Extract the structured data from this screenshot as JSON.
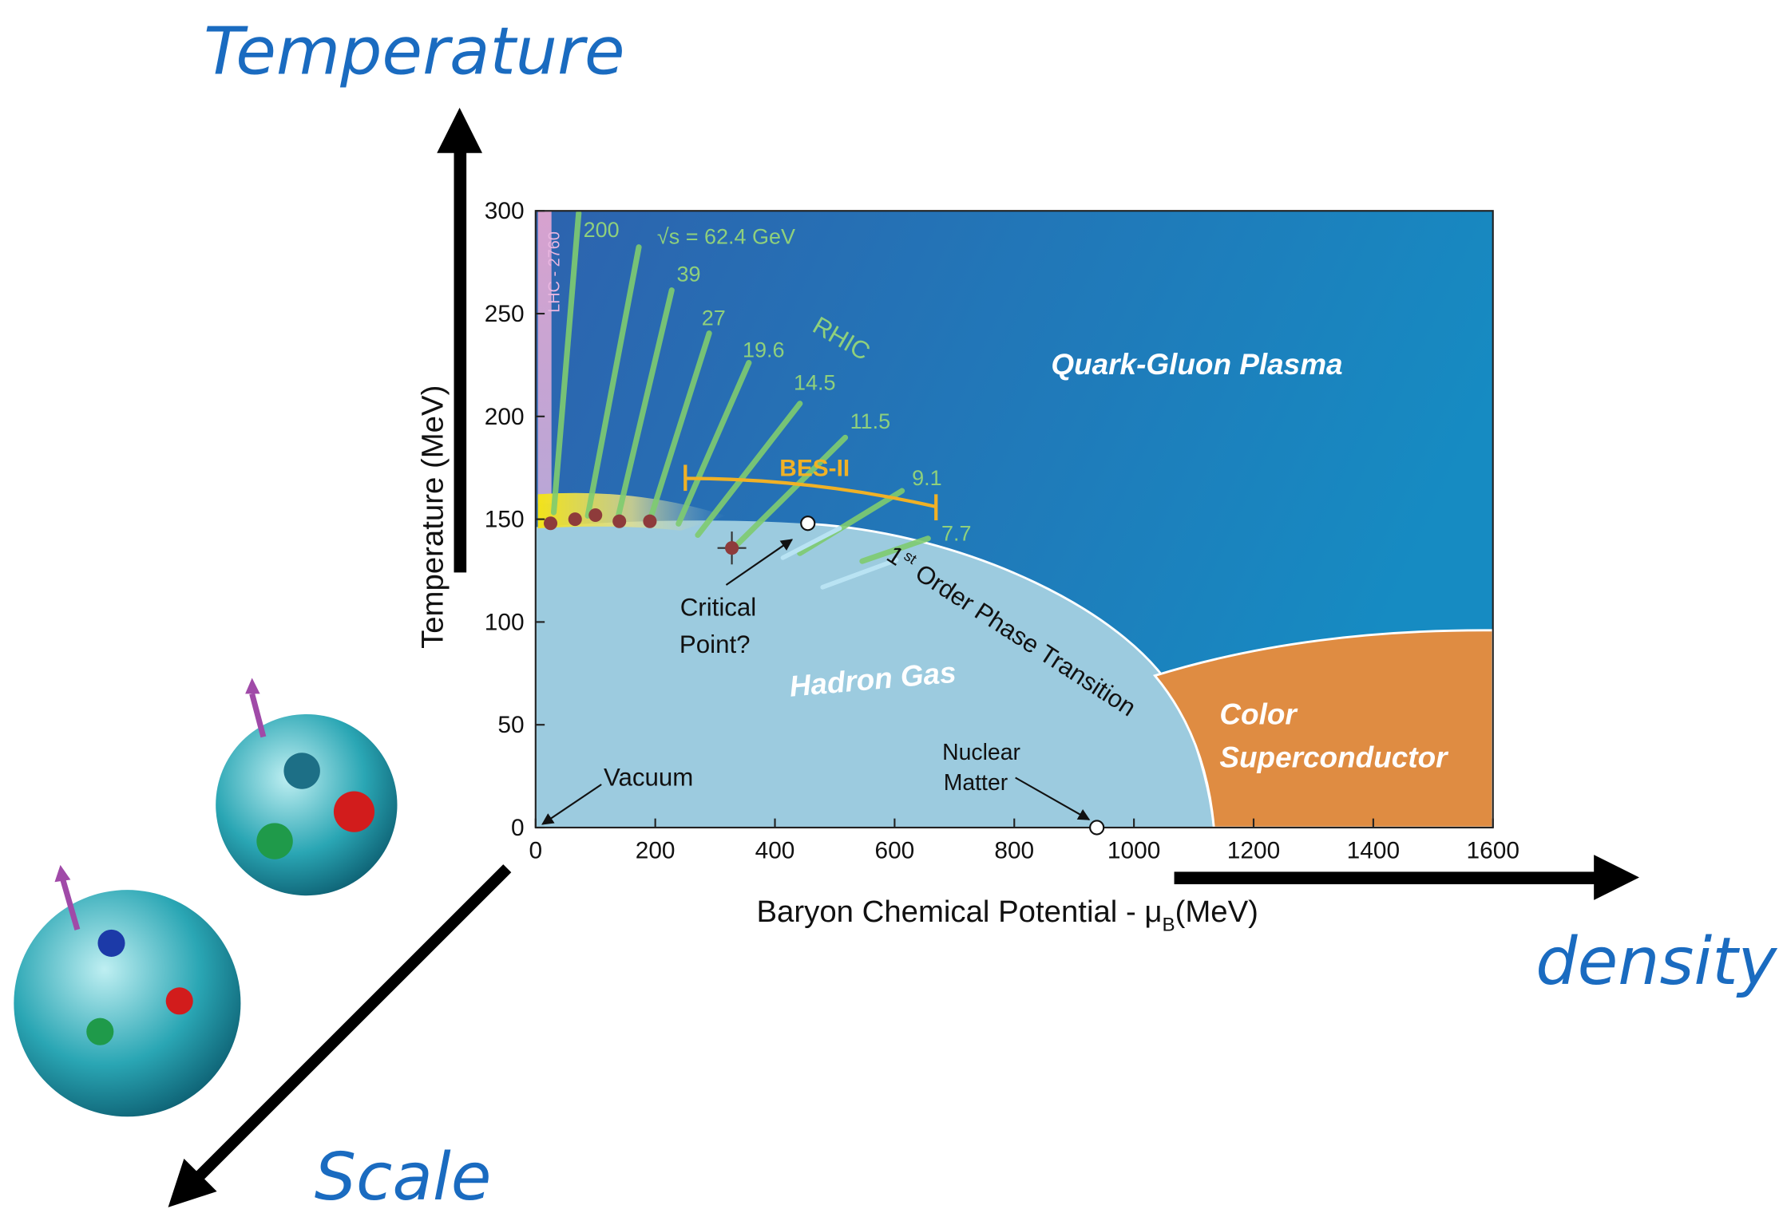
{
  "chart_data": {
    "type": "phase",
    "xlabel": {
      "main": "Baryon Chemical Potential - μ",
      "sub": "B",
      "unit": "(MeV)"
    },
    "ylabel": "Temperature (MeV)",
    "xlim": [
      0,
      1600
    ],
    "ylim": [
      0,
      300
    ],
    "xticks": [
      0,
      200,
      400,
      600,
      800,
      1000,
      1200,
      1400,
      1600
    ],
    "yticks": [
      0,
      50,
      100,
      150,
      200,
      250,
      300
    ],
    "series": [
      {
        "color": "#8e3b3b",
        "x": [
          25,
          66,
          100,
          140,
          191,
          328
        ],
        "values": [
          148,
          150,
          152,
          149,
          149,
          136
        ],
        "errors": [
          null,
          null,
          null,
          null,
          null,
          8
        ],
        "x_errors": [
          null,
          null,
          null,
          null,
          null,
          24
        ]
      },
      {
        "color": "#ffffff",
        "x": [
          455,
          938
        ],
        "values": [
          148,
          0
        ]
      }
    ],
    "regions": {
      "qgp": "Quark-Gluon Plasma",
      "hadron": "Hadron Gas",
      "csc": [
        "Color",
        "Superconductor"
      ]
    },
    "annotations": {
      "critical_point": [
        "Critical",
        "Point?"
      ],
      "vacuum": "Vacuum",
      "nuclear_matter": [
        "Nuclear",
        "Matter"
      ],
      "transition": [
        "1",
        "st",
        "Order Phase Transition"
      ],
      "bes": "BES-II",
      "rhic": "RHIC",
      "lhc": "LHC - 2760",
      "energies": [
        "200",
        "√s = 62.4 GeV",
        "39",
        "27",
        "19.6",
        "14.5",
        "11.5",
        "9.1",
        "7.7"
      ]
    }
  },
  "outer_labels": {
    "temperature": "Temperature",
    "density": "density",
    "scale": "Scale"
  }
}
